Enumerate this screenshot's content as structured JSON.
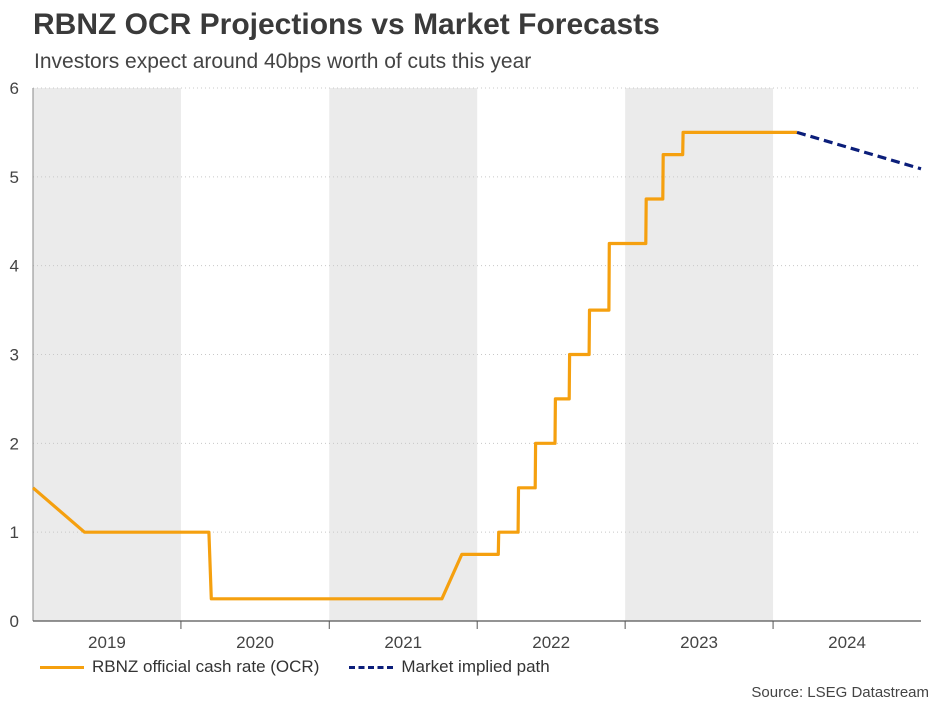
{
  "title": "RBNZ OCR Projections vs Market Forecasts",
  "subtitle": "Investors expect around 40bps worth of cuts this year",
  "source": "Source: LSEG Datastream",
  "legend": [
    {
      "label": "RBNZ official cash rate (OCR)",
      "color": "#f5a00f",
      "style": "solid"
    },
    {
      "label": "Market implied path",
      "color": "#0b1e7a",
      "style": "dashed"
    }
  ],
  "chart_data": {
    "type": "line",
    "x_type": "date",
    "xlim": [
      "2019-01-01",
      "2024-12-31"
    ],
    "ylim": [
      0,
      6
    ],
    "yticks": [
      0,
      1,
      2,
      3,
      4,
      5,
      6
    ],
    "year_labels": [
      "2019",
      "2020",
      "2021",
      "2022",
      "2023",
      "2024"
    ],
    "shaded_years": [
      "2019",
      "2021",
      "2023"
    ],
    "shade_color": "#ebebeb",
    "grid": "horizontal-dotted",
    "legend_position": "bottom",
    "series": [
      {
        "name": "RBNZ official cash rate (OCR)",
        "color": "#f5a00f",
        "style": "solid",
        "points": [
          [
            "2019-01-01",
            1.5
          ],
          [
            "2019-05-08",
            1.0
          ],
          [
            "2020-03-10",
            1.0
          ],
          [
            "2020-03-16",
            0.25
          ],
          [
            "2021-10-06",
            0.25
          ],
          [
            "2021-11-24",
            0.75
          ],
          [
            "2022-02-22",
            0.75
          ],
          [
            "2022-02-23",
            1.0
          ],
          [
            "2022-04-12",
            1.0
          ],
          [
            "2022-04-13",
            1.5
          ],
          [
            "2022-05-24",
            1.5
          ],
          [
            "2022-05-25",
            2.0
          ],
          [
            "2022-07-12",
            2.0
          ],
          [
            "2022-07-13",
            2.5
          ],
          [
            "2022-08-16",
            2.5
          ],
          [
            "2022-08-17",
            3.0
          ],
          [
            "2022-10-04",
            3.0
          ],
          [
            "2022-10-05",
            3.5
          ],
          [
            "2022-11-22",
            3.5
          ],
          [
            "2022-11-23",
            4.25
          ],
          [
            "2023-02-21",
            4.25
          ],
          [
            "2023-02-22",
            4.75
          ],
          [
            "2023-04-04",
            4.75
          ],
          [
            "2023-04-05",
            5.25
          ],
          [
            "2023-05-23",
            5.25
          ],
          [
            "2023-05-24",
            5.5
          ],
          [
            "2024-02-29",
            5.5
          ]
        ]
      },
      {
        "name": "Market implied path",
        "color": "#0b1e7a",
        "style": "dashed",
        "points": [
          [
            "2024-02-29",
            5.5
          ],
          [
            "2024-12-31",
            5.09
          ]
        ]
      }
    ]
  }
}
